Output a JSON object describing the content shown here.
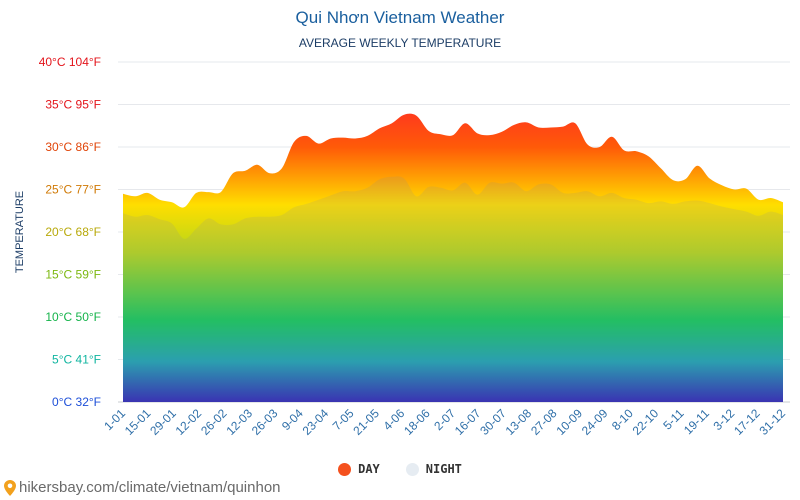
{
  "title": "Qui Nhơn Vietnam Weather",
  "subtitle": "AVERAGE WEEKLY TEMPERATURE",
  "footer": {
    "url": "hikersbay.com/climate/vietnam/quinhon",
    "icon": "map-pin-icon"
  },
  "colors": {
    "day_legend": "#f4511e",
    "night_legend": "#e6ecf2",
    "title": "#1a5f9e"
  },
  "chart_data": {
    "type": "area",
    "title": "Qui Nhơn Vietnam Weather",
    "subtitle": "AVERAGE WEEKLY TEMPERATURE",
    "ylabel": "TEMPERATURE",
    "xlabel": "",
    "ylim": [
      0,
      40
    ],
    "grid": true,
    "legend_position": "bottom-center",
    "y_ticks": [
      {
        "value": 0,
        "label": "0°C 32°F",
        "color": "#1d4fd8"
      },
      {
        "value": 5,
        "label": "5°C 41°F",
        "color": "#10b5a0"
      },
      {
        "value": 10,
        "label": "10°C 50°F",
        "color": "#14b34a"
      },
      {
        "value": 15,
        "label": "15°C 59°F",
        "color": "#7cb810"
      },
      {
        "value": 20,
        "label": "20°C 68°F",
        "color": "#b8a90a"
      },
      {
        "value": 25,
        "label": "25°C 77°F",
        "color": "#d07a06"
      },
      {
        "value": 30,
        "label": "30°C 86°F",
        "color": "#e04408"
      },
      {
        "value": 35,
        "label": "35°C 95°F",
        "color": "#e3141b"
      },
      {
        "value": 40,
        "label": "40°C 104°F",
        "color": "#e3141b"
      }
    ],
    "x_labels": [
      "1-01",
      "15-01",
      "29-01",
      "12-02",
      "26-02",
      "12-03",
      "26-03",
      "9-04",
      "23-04",
      "7-05",
      "21-05",
      "4-06",
      "18-06",
      "2-07",
      "16-07",
      "30-07",
      "13-08",
      "27-08",
      "10-09",
      "24-09",
      "8-10",
      "22-10",
      "5-11",
      "19-11",
      "3-12",
      "17-12",
      "31-12"
    ],
    "series": [
      {
        "name": "DAY",
        "values": [
          24.5,
          24.2,
          24.6,
          23.8,
          23.5,
          22.9,
          24.6,
          24.7,
          24.7,
          26.9,
          27.2,
          27.9,
          26.9,
          27.5,
          30.6,
          31.3,
          30.4,
          31.0,
          31.1,
          31.0,
          31.3,
          32.2,
          32.8,
          33.8,
          33.7,
          31.9,
          31.5,
          31.4,
          32.8,
          31.6,
          31.4,
          31.8,
          32.6,
          32.9,
          32.3,
          32.3,
          32.4,
          32.8,
          30.3,
          30.0,
          31.2,
          29.6,
          29.5,
          28.9,
          27.5,
          26.1,
          26.2,
          27.8,
          26.3,
          25.5,
          25.0,
          25.1,
          23.8,
          24.0,
          23.5
        ]
      },
      {
        "name": "NIGHT",
        "values": [
          22.2,
          21.8,
          22.0,
          21.5,
          21.0,
          19.2,
          20.4,
          21.6,
          20.9,
          20.9,
          21.6,
          21.8,
          21.8,
          22.0,
          22.9,
          23.3,
          23.8,
          24.3,
          24.8,
          24.8,
          25.2,
          26.2,
          26.5,
          26.3,
          24.2,
          25.3,
          25.2,
          24.9,
          25.8,
          24.4,
          25.8,
          25.7,
          25.8,
          24.8,
          25.6,
          25.6,
          24.6,
          24.6,
          24.8,
          24.2,
          24.6,
          24.0,
          23.8,
          23.4,
          23.6,
          23.3,
          23.6,
          23.7,
          23.4,
          23.0,
          22.7,
          22.4,
          21.9,
          22.4,
          22.0
        ]
      }
    ]
  }
}
